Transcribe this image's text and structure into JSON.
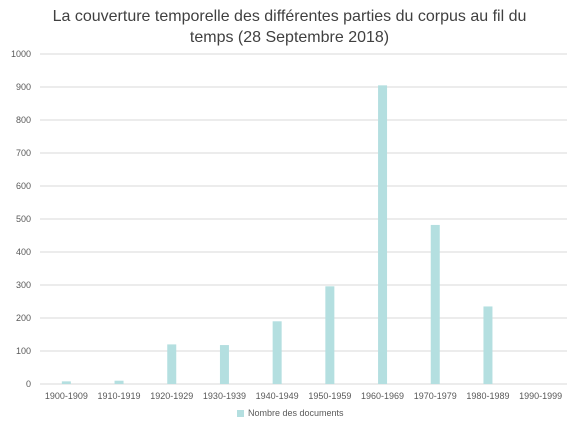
{
  "chart_data": {
    "type": "bar",
    "title_line1": "La couverture temporelle des différentes parties du corpus au fil du",
    "title_line2": "temps (28 Septembre 2018)",
    "xlabel": "",
    "ylabel": "",
    "ylim": [
      0,
      1000
    ],
    "yticks": [
      "0",
      "100",
      "200",
      "300",
      "400",
      "500",
      "600",
      "700",
      "800",
      "900",
      "1000"
    ],
    "grid": true,
    "legend_position": "bottom",
    "categories": [
      "1900-1909",
      "1910-1919",
      "1920-1929",
      "1930-1939",
      "1940-1949",
      "1950-1959",
      "1960-1969",
      "1970-1979",
      "1980-1989",
      "1990-1999"
    ],
    "series": [
      {
        "name": "Nombre des documents",
        "color": "#b4dfe0",
        "values": [
          8,
          10,
          120,
          118,
          190,
          296,
          905,
          482,
          235,
          0
        ]
      }
    ]
  }
}
